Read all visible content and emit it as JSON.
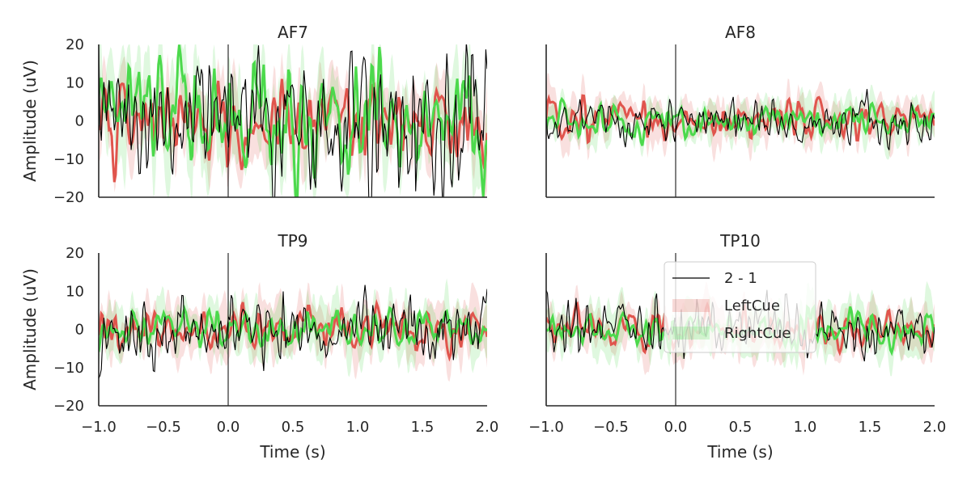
{
  "chart_data": {
    "type": "line",
    "layout": "2x2 grid, shared x and y axes",
    "xlim": [
      -1.0,
      2.0
    ],
    "ylim": [
      -20,
      20
    ],
    "x_ticks": [
      "−1.0",
      "−0.5",
      "0.0",
      "0.5",
      "1.0",
      "1.5",
      "2.0"
    ],
    "x_tick_values": [
      -1.0,
      -0.5,
      0.0,
      0.5,
      1.0,
      1.5,
      2.0
    ],
    "y_ticks": [
      "20",
      "10",
      "0",
      "−10",
      "−20"
    ],
    "y_tick_values": [
      20,
      10,
      0,
      -10,
      -20
    ],
    "xlabel": "Time (s)",
    "ylabel": "Amplitude (uV)",
    "grid": false,
    "stimulus_line_x": 0.0,
    "legend": {
      "panel": "TP10",
      "placement": "upper center",
      "entries": [
        {
          "label": "2 - 1",
          "kind": "line",
          "color": "#000000"
        },
        {
          "label": "LeftCue",
          "kind": "band",
          "color": "#e0554d"
        },
        {
          "label": "RightCue",
          "kind": "band",
          "color": "#4cd94c"
        }
      ]
    },
    "series_colors": {
      "LeftCue": "#e0554d",
      "RightCue": "#4cd94c",
      "difference": "#000000"
    },
    "panels": [
      {
        "title": "AF7",
        "amp_left": 5.0,
        "amp_right": 7.5,
        "amp_diff": 9.0,
        "band_left": 6.5,
        "band_right": 9.5
      },
      {
        "title": "AF8",
        "amp_left": 2.5,
        "amp_right": 2.0,
        "amp_diff": 2.8,
        "band_left": 4.0,
        "band_right": 4.0
      },
      {
        "title": "TP9",
        "amp_left": 2.6,
        "amp_right": 2.4,
        "amp_diff": 4.2,
        "band_left": 5.0,
        "band_right": 5.5
      },
      {
        "title": "TP10",
        "amp_left": 2.4,
        "amp_right": 2.2,
        "amp_diff": 3.6,
        "band_left": 4.5,
        "band_right": 5.0
      }
    ]
  }
}
